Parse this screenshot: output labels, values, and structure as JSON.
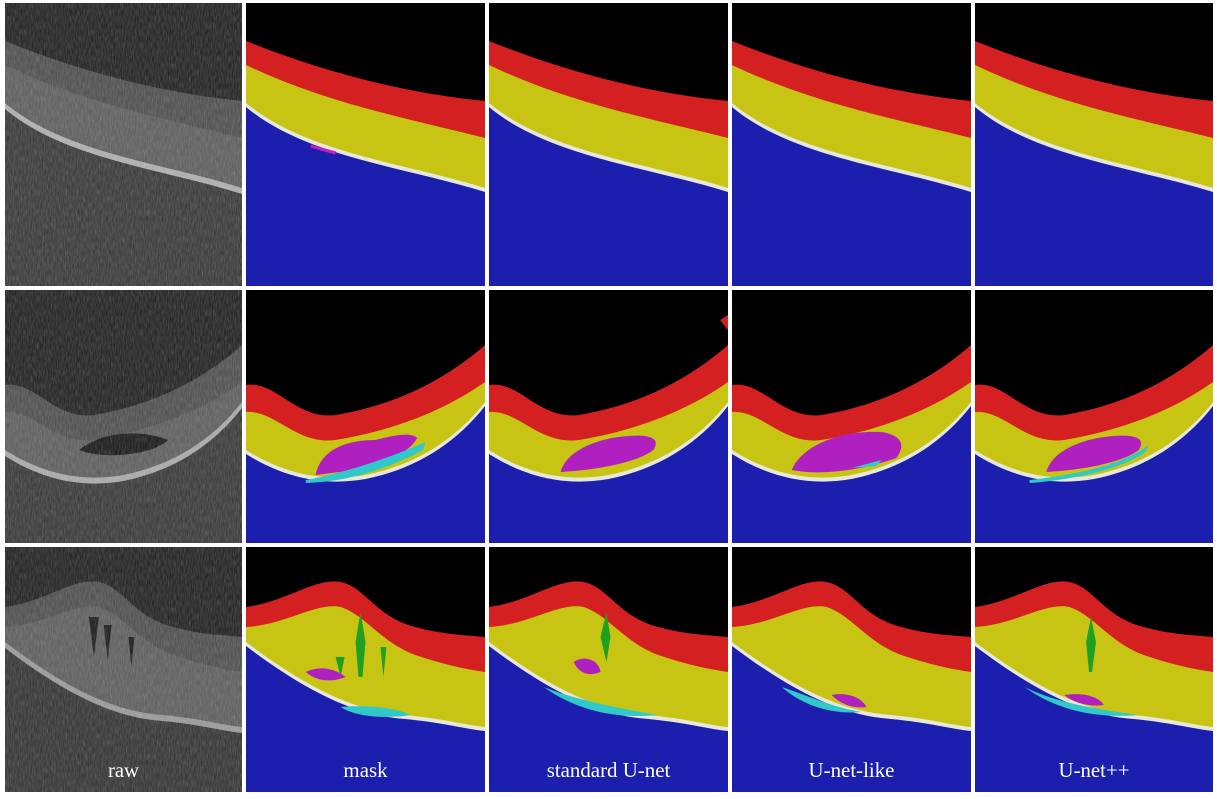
{
  "columns": [
    "raw",
    "mask",
    "standard U-net",
    "U-net-like",
    "U-net++"
  ]
}
